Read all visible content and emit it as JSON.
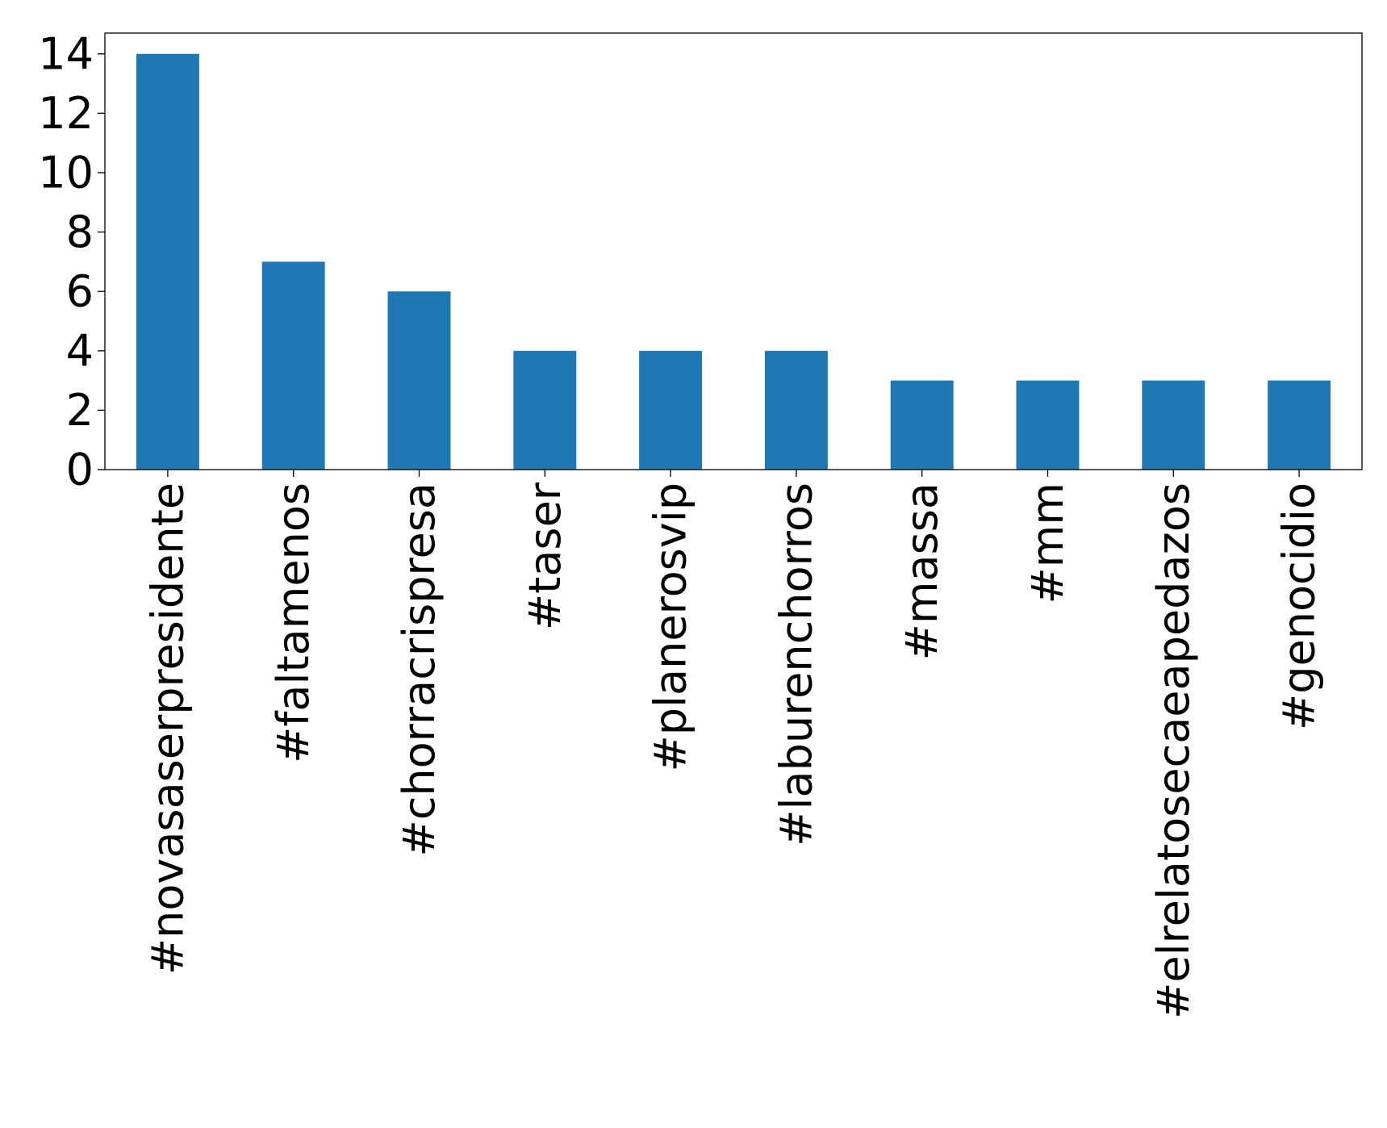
{
  "chart_data": {
    "type": "bar",
    "title": "",
    "xlabel": "",
    "ylabel": "",
    "categories": [
      "#novasaserpresidente",
      "#faltamenos",
      "#chorracrispresa",
      "#taser",
      "#planerosvip",
      "#laburenchorros",
      "#massa",
      "#mm",
      "#elrelatosecaeapedazos",
      "#genocidio"
    ],
    "values": [
      14,
      7,
      6,
      4,
      4,
      4,
      3,
      3,
      3,
      3
    ],
    "ylim": [
      0,
      14.7
    ],
    "yticks": [
      0,
      2,
      4,
      6,
      8,
      10,
      12,
      14
    ],
    "grid": false,
    "legend": "none",
    "bar_color": "#1f77b4"
  }
}
